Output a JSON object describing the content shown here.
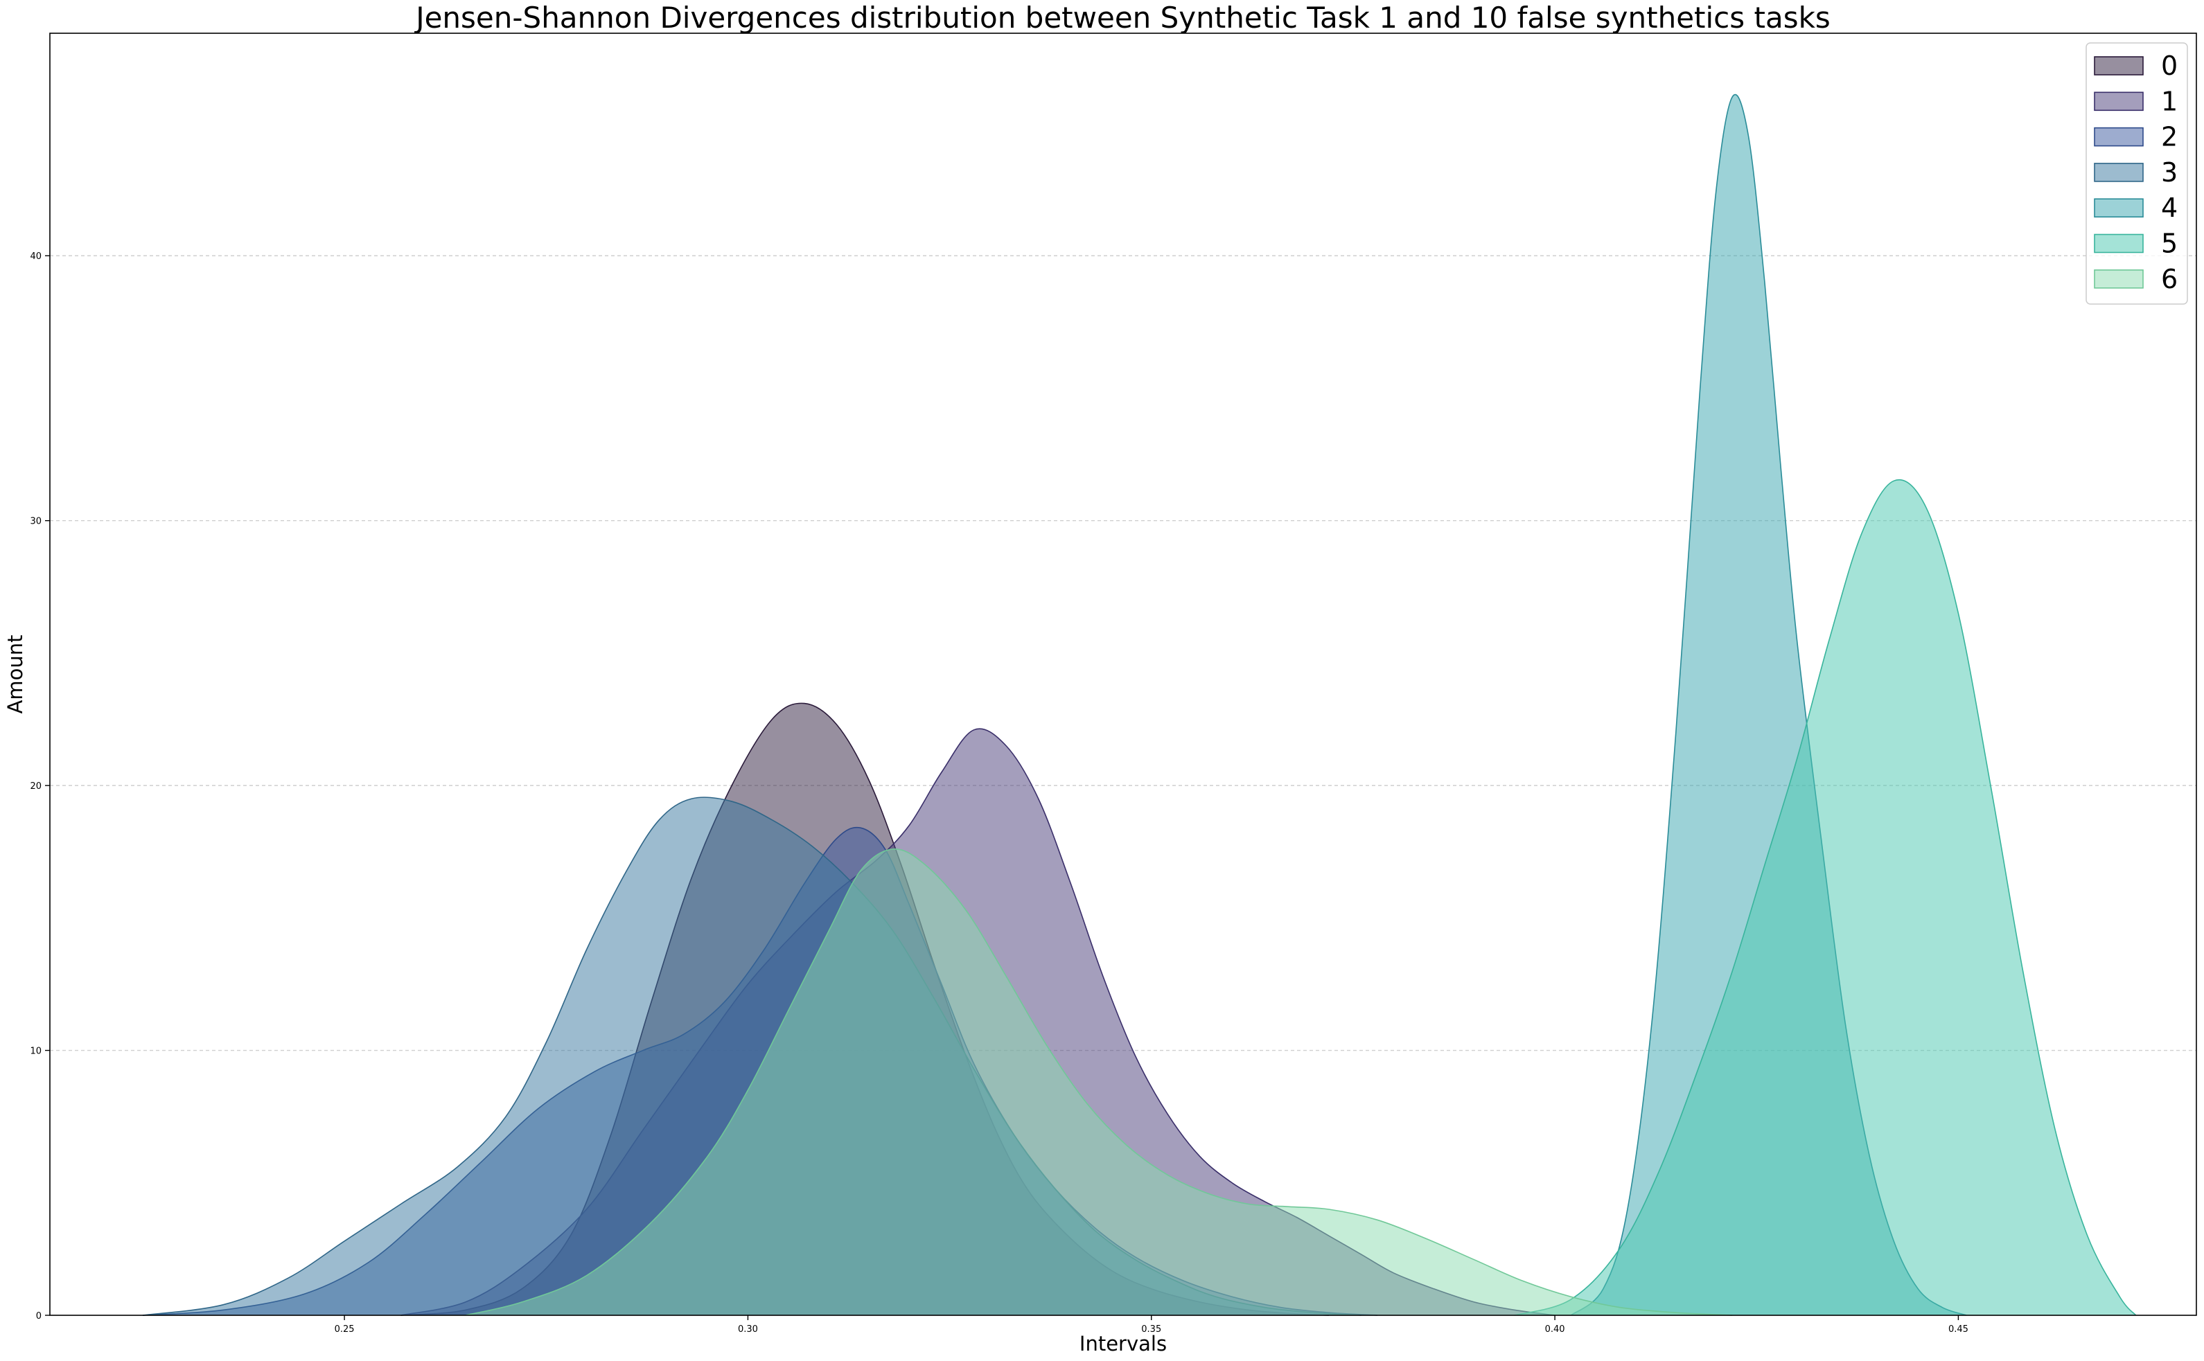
{
  "chart_data": {
    "type": "area",
    "title": "Jensen-Shannon Divergences distribution between Synthetic Task 1 and 10 false synthetics tasks",
    "xlabel": "Intervals",
    "ylabel": "Amount",
    "xlim": [
      0.2135,
      0.4795
    ],
    "ylim": [
      0,
      48.4
    ],
    "xticks": [
      0.25,
      0.3,
      0.35,
      0.4,
      0.45
    ],
    "xtick_labels": [
      "0.25",
      "0.30",
      "0.35",
      "0.40",
      "0.45"
    ],
    "yticks": [
      0,
      10,
      20,
      30,
      40
    ],
    "ytick_labels": [
      "0",
      "10",
      "20",
      "30",
      "40"
    ],
    "grid": "horizontal dashed",
    "legend_placement": "top-right",
    "series": [
      {
        "name": "0",
        "fill": "#2f1f3f",
        "stroke": "#2a1a3a",
        "points": [
          [
            0.257,
            0
          ],
          [
            0.265,
            0.2
          ],
          [
            0.272,
            1.0
          ],
          [
            0.278,
            3.0
          ],
          [
            0.283,
            6.8
          ],
          [
            0.288,
            11.8
          ],
          [
            0.293,
            16.5
          ],
          [
            0.298,
            20.0
          ],
          [
            0.303,
            22.5
          ],
          [
            0.307,
            23.1
          ],
          [
            0.311,
            22.3
          ],
          [
            0.315,
            20.2
          ],
          [
            0.319,
            17.0
          ],
          [
            0.323,
            13.3
          ],
          [
            0.327,
            9.8
          ],
          [
            0.331,
            6.8
          ],
          [
            0.335,
            4.6
          ],
          [
            0.34,
            2.9
          ],
          [
            0.345,
            1.7
          ],
          [
            0.35,
            1.0
          ],
          [
            0.356,
            0.5
          ],
          [
            0.362,
            0.2
          ],
          [
            0.368,
            0.05
          ],
          [
            0.372,
            0
          ]
        ]
      },
      {
        "name": "1",
        "fill": "#4a3d7a",
        "stroke": "#3a2f6a",
        "points": [
          [
            0.257,
            0
          ],
          [
            0.265,
            0.5
          ],
          [
            0.272,
            1.8
          ],
          [
            0.28,
            4.0
          ],
          [
            0.287,
            7.0
          ],
          [
            0.294,
            10.0
          ],
          [
            0.3,
            12.5
          ],
          [
            0.306,
            14.5
          ],
          [
            0.311,
            16.0
          ],
          [
            0.316,
            17.2
          ],
          [
            0.32,
            18.5
          ],
          [
            0.324,
            20.5
          ],
          [
            0.328,
            22.1
          ],
          [
            0.332,
            21.5
          ],
          [
            0.336,
            19.5
          ],
          [
            0.34,
            16.3
          ],
          [
            0.344,
            12.8
          ],
          [
            0.348,
            9.8
          ],
          [
            0.352,
            7.6
          ],
          [
            0.356,
            6.0
          ],
          [
            0.36,
            5.0
          ],
          [
            0.364,
            4.3
          ],
          [
            0.368,
            3.7
          ],
          [
            0.372,
            3.0
          ],
          [
            0.376,
            2.3
          ],
          [
            0.38,
            1.6
          ],
          [
            0.385,
            1.0
          ],
          [
            0.39,
            0.5
          ],
          [
            0.395,
            0.2
          ],
          [
            0.4,
            0
          ]
        ]
      },
      {
        "name": "2",
        "fill": "#3b5aa0",
        "stroke": "#2e4a8a",
        "points": [
          [
            0.225,
            0
          ],
          [
            0.235,
            0.2
          ],
          [
            0.245,
            0.8
          ],
          [
            0.253,
            2.0
          ],
          [
            0.26,
            3.8
          ],
          [
            0.267,
            5.8
          ],
          [
            0.274,
            7.8
          ],
          [
            0.281,
            9.2
          ],
          [
            0.287,
            10.0
          ],
          [
            0.292,
            10.6
          ],
          [
            0.297,
            11.8
          ],
          [
            0.302,
            13.8
          ],
          [
            0.307,
            16.3
          ],
          [
            0.311,
            18.0
          ],
          [
            0.314,
            18.4
          ],
          [
            0.317,
            17.6
          ],
          [
            0.32,
            15.5
          ],
          [
            0.324,
            12.5
          ],
          [
            0.328,
            9.5
          ],
          [
            0.333,
            6.8
          ],
          [
            0.338,
            4.8
          ],
          [
            0.343,
            3.3
          ],
          [
            0.348,
            2.2
          ],
          [
            0.354,
            1.3
          ],
          [
            0.36,
            0.7
          ],
          [
            0.366,
            0.3
          ],
          [
            0.372,
            0.1
          ],
          [
            0.378,
            0
          ]
        ]
      },
      {
        "name": "3",
        "fill": "#3a78a0",
        "stroke": "#2f6688",
        "points": [
          [
            0.225,
            0
          ],
          [
            0.235,
            0.4
          ],
          [
            0.243,
            1.4
          ],
          [
            0.25,
            2.8
          ],
          [
            0.257,
            4.2
          ],
          [
            0.264,
            5.6
          ],
          [
            0.27,
            7.5
          ],
          [
            0.275,
            10.3
          ],
          [
            0.28,
            13.8
          ],
          [
            0.285,
            16.8
          ],
          [
            0.289,
            18.7
          ],
          [
            0.293,
            19.5
          ],
          [
            0.298,
            19.4
          ],
          [
            0.303,
            18.7
          ],
          [
            0.308,
            17.7
          ],
          [
            0.313,
            16.3
          ],
          [
            0.318,
            14.5
          ],
          [
            0.323,
            12.0
          ],
          [
            0.328,
            9.3
          ],
          [
            0.333,
            6.8
          ],
          [
            0.338,
            4.8
          ],
          [
            0.343,
            3.2
          ],
          [
            0.348,
            2.1
          ],
          [
            0.353,
            1.3
          ],
          [
            0.358,
            0.7
          ],
          [
            0.364,
            0.3
          ],
          [
            0.37,
            0.1
          ],
          [
            0.376,
            0
          ]
        ]
      },
      {
        "name": "4",
        "fill": "#3aa5b0",
        "stroke": "#2a8c98",
        "points": [
          [
            0.402,
            0
          ],
          [
            0.406,
            1.0
          ],
          [
            0.409,
            4.0
          ],
          [
            0.412,
            11.0
          ],
          [
            0.415,
            22.0
          ],
          [
            0.418,
            35.0
          ],
          [
            0.42,
            42.5
          ],
          [
            0.422,
            46.0
          ],
          [
            0.424,
            44.5
          ],
          [
            0.426,
            39.0
          ],
          [
            0.428,
            32.0
          ],
          [
            0.43,
            25.5
          ],
          [
            0.433,
            18.0
          ],
          [
            0.436,
            11.0
          ],
          [
            0.439,
            6.0
          ],
          [
            0.442,
            2.8
          ],
          [
            0.445,
            1.0
          ],
          [
            0.448,
            0.3
          ],
          [
            0.451,
            0
          ]
        ]
      },
      {
        "name": "5",
        "fill": "#4ac8b0",
        "stroke": "#38b49c",
        "points": [
          [
            0.395,
            0
          ],
          [
            0.402,
            0.6
          ],
          [
            0.408,
            2.5
          ],
          [
            0.413,
            5.5
          ],
          [
            0.418,
            9.5
          ],
          [
            0.422,
            13.0
          ],
          [
            0.426,
            17.0
          ],
          [
            0.43,
            21.0
          ],
          [
            0.434,
            25.5
          ],
          [
            0.438,
            29.5
          ],
          [
            0.442,
            31.5
          ],
          [
            0.446,
            30.5
          ],
          [
            0.45,
            26.5
          ],
          [
            0.454,
            20.0
          ],
          [
            0.458,
            13.0
          ],
          [
            0.462,
            7.0
          ],
          [
            0.466,
            3.0
          ],
          [
            0.47,
            0.7
          ],
          [
            0.472,
            0
          ]
        ]
      },
      {
        "name": "6",
        "fill": "#8cdcb0",
        "stroke": "#70c898",
        "points": [
          [
            0.265,
            0
          ],
          [
            0.272,
            0.5
          ],
          [
            0.28,
            1.5
          ],
          [
            0.288,
            3.5
          ],
          [
            0.295,
            6.0
          ],
          [
            0.3,
            8.5
          ],
          [
            0.305,
            11.5
          ],
          [
            0.31,
            14.5
          ],
          [
            0.314,
            16.8
          ],
          [
            0.318,
            17.6
          ],
          [
            0.322,
            17.0
          ],
          [
            0.327,
            15.3
          ],
          [
            0.332,
            12.8
          ],
          [
            0.337,
            10.2
          ],
          [
            0.342,
            8.0
          ],
          [
            0.347,
            6.4
          ],
          [
            0.352,
            5.3
          ],
          [
            0.357,
            4.6
          ],
          [
            0.362,
            4.2
          ],
          [
            0.367,
            4.1
          ],
          [
            0.372,
            4.0
          ],
          [
            0.378,
            3.6
          ],
          [
            0.384,
            2.9
          ],
          [
            0.39,
            2.1
          ],
          [
            0.396,
            1.3
          ],
          [
            0.402,
            0.7
          ],
          [
            0.408,
            0.3
          ],
          [
            0.415,
            0.1
          ],
          [
            0.422,
            0
          ]
        ]
      }
    ]
  }
}
